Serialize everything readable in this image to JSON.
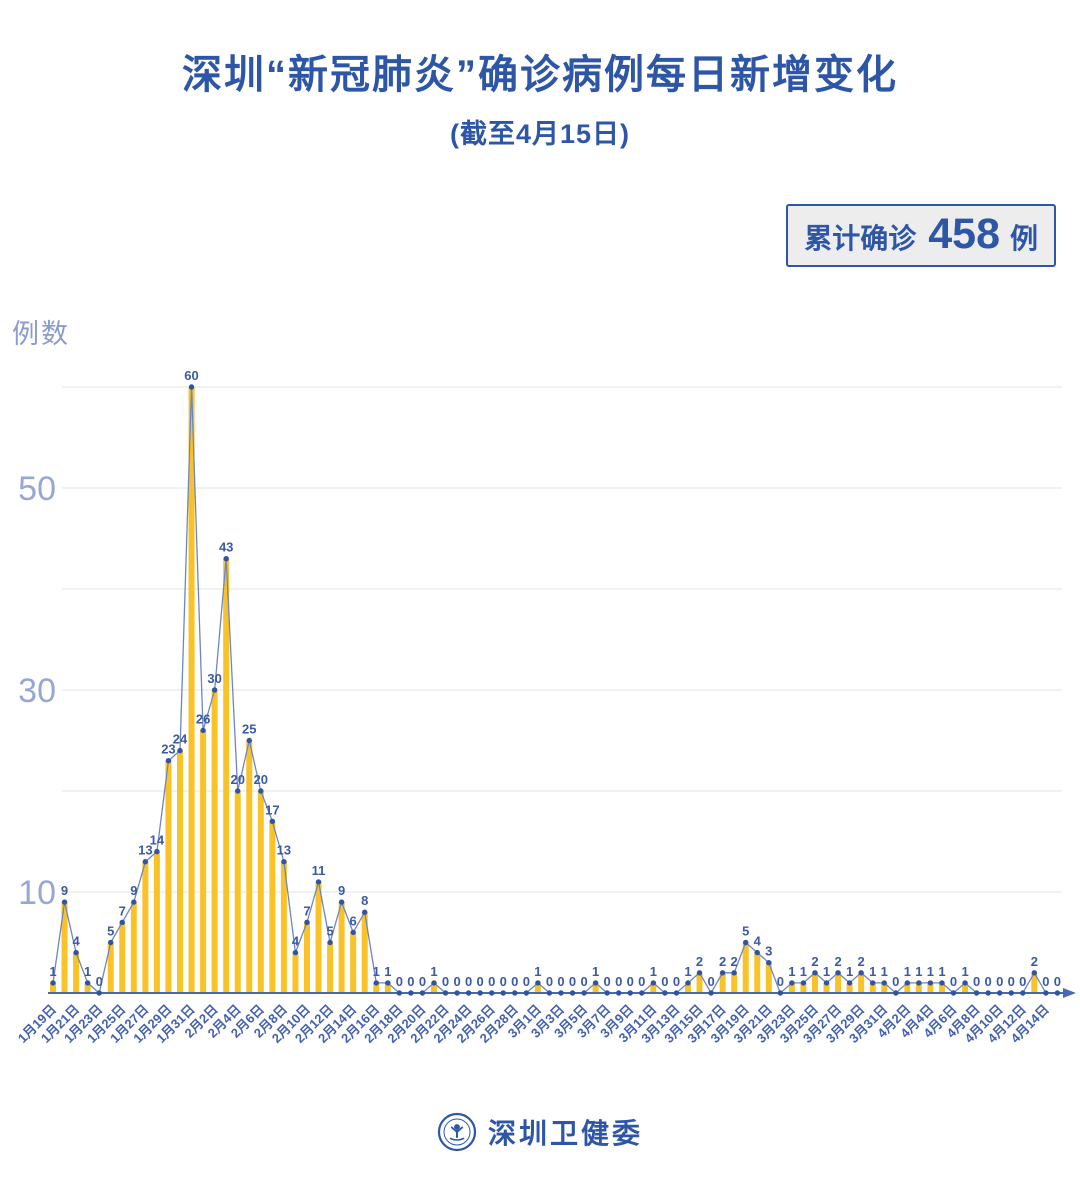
{
  "header": {
    "title": "深圳“新冠肺炎”确诊病例每日新增变化",
    "subtitle": "(截至4月15日)"
  },
  "badge": {
    "prefix": "累计确诊",
    "value": "458",
    "unit": "例"
  },
  "footer": {
    "org": "深圳卫健委",
    "logo": "shenzhen-health-commission-seal"
  },
  "colors": {
    "title_blue": "#2e56a6",
    "value_label": "#3a5aa8",
    "tick_label": "#4160ae",
    "bar": "#f9c327",
    "line": "#6d86c3",
    "dot": "#32539e",
    "axis": "#4a68b0",
    "grid": "#e3e3e3",
    "axis_label": "#98a6d3",
    "badge_bg": "#ededed"
  },
  "chart_data": {
    "type": "bar",
    "overlay": "line-with-point-labels",
    "title": "深圳“新冠肺炎”确诊病例每日新增变化",
    "subtitle": "(截至4月15日)",
    "annotation": "累计确诊 458 例",
    "xlabel": "",
    "ylabel": "例数",
    "ylim": [
      0,
      60
    ],
    "grid_interval": 10,
    "grid_on": true,
    "ytick_labels": [
      10,
      30,
      50
    ],
    "xtick_rule": "every_other_day",
    "legend": "none",
    "categories": [
      "1月19日",
      "1月20日",
      "1月21日",
      "1月22日",
      "1月23日",
      "1月24日",
      "1月25日",
      "1月26日",
      "1月27日",
      "1月28日",
      "1月29日",
      "1月30日",
      "1月31日",
      "2月1日",
      "2月2日",
      "2月3日",
      "2月4日",
      "2月5日",
      "2月6日",
      "2月7日",
      "2月8日",
      "2月9日",
      "2月10日",
      "2月11日",
      "2月12日",
      "2月13日",
      "2月14日",
      "2月15日",
      "2月16日",
      "2月17日",
      "2月18日",
      "2月19日",
      "2月20日",
      "2月21日",
      "2月22日",
      "2月23日",
      "2月24日",
      "2月25日",
      "2月26日",
      "2月27日",
      "2月28日",
      "2月29日",
      "3月1日",
      "3月2日",
      "3月3日",
      "3月4日",
      "3月5日",
      "3月6日",
      "3月7日",
      "3月8日",
      "3月9日",
      "3月10日",
      "3月11日",
      "3月12日",
      "3月13日",
      "3月14日",
      "3月15日",
      "3月16日",
      "3月17日",
      "3月18日",
      "3月19日",
      "3月20日",
      "3月21日",
      "3月22日",
      "3月23日",
      "3月24日",
      "3月25日",
      "3月26日",
      "3月27日",
      "3月28日",
      "3月29日",
      "3月30日",
      "3月31日",
      "4月1日",
      "4月2日",
      "4月3日",
      "4月4日",
      "4月5日",
      "4月6日",
      "4月7日",
      "4月8日",
      "4月9日",
      "4月10日",
      "4月11日",
      "4月12日",
      "4月13日",
      "4月14日",
      "4月15日"
    ],
    "values": [
      1,
      9,
      4,
      1,
      0,
      5,
      7,
      9,
      13,
      14,
      23,
      24,
      60,
      26,
      30,
      43,
      20,
      25,
      20,
      17,
      13,
      4,
      7,
      11,
      5,
      9,
      6,
      8,
      1,
      1,
      0,
      0,
      0,
      1,
      0,
      0,
      0,
      0,
      0,
      0,
      0,
      0,
      1,
      0,
      0,
      0,
      0,
      1,
      0,
      0,
      0,
      0,
      1,
      0,
      0,
      1,
      2,
      0,
      2,
      2,
      5,
      4,
      3,
      0,
      1,
      1,
      2,
      1,
      2,
      1,
      2,
      1,
      1,
      0,
      1,
      1,
      1,
      1,
      0,
      1,
      0,
      0,
      0,
      0,
      0,
      2,
      0,
      0
    ]
  }
}
